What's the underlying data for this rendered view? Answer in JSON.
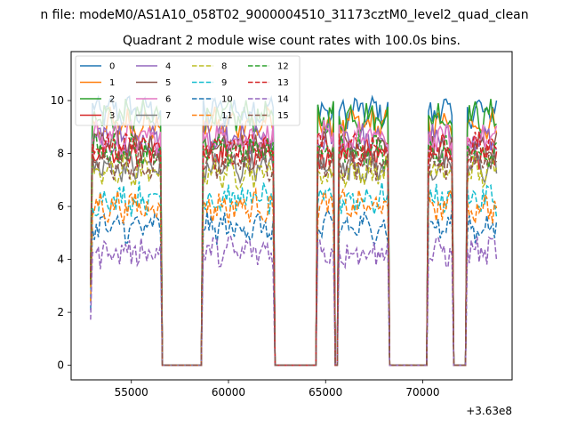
{
  "figure": {
    "suptitle": "n file: modeM0/AS1A10_058T02_9000004510_31173cztM0_level2_quad_clean",
    "title": "Quadrant 2 module wise count rates with 100.0s bins.",
    "x_offset_label": "+3.63e8"
  },
  "chart_data": {
    "type": "line",
    "title": "Quadrant 2 module wise count rates with 100.0s bins.",
    "xlabel": "",
    "ylabel": "",
    "x_offset": 363000000,
    "xlim": [
      51900,
      74600
    ],
    "ylim": [
      -0.55,
      11.85
    ],
    "x_ticks": [
      55000,
      60000,
      65000,
      70000
    ],
    "x_tick_labels": [
      "55000",
      "60000",
      "65000",
      "70000"
    ],
    "y_ticks": [
      0,
      2,
      4,
      6,
      8,
      10
    ],
    "y_tick_labels": [
      "0",
      "2",
      "4",
      "6",
      "8",
      "10"
    ],
    "grid": false,
    "legend": {
      "placement": "top-left",
      "columns": 4
    },
    "x_start": 52900,
    "x_end": 73800,
    "x_step": 100,
    "active_intervals": [
      [
        53000,
        56500
      ],
      [
        58700,
        59400
      ],
      [
        59500,
        62300
      ],
      [
        64600,
        65400
      ],
      [
        65700,
        68200
      ],
      [
        70300,
        71500
      ],
      [
        72300,
        73800
      ]
    ],
    "series": [
      {
        "name": "0",
        "level": 9.6,
        "color": "#1f77b4",
        "dash": "solid"
      },
      {
        "name": "1",
        "level": 9.1,
        "color": "#ff7f0e",
        "dash": "solid"
      },
      {
        "name": "2",
        "level": 9.4,
        "color": "#2ca02c",
        "dash": "solid"
      },
      {
        "name": "3",
        "level": 8.0,
        "color": "#d62728",
        "dash": "solid"
      },
      {
        "name": "4",
        "level": 8.5,
        "color": "#9467bd",
        "dash": "solid"
      },
      {
        "name": "5",
        "level": 8.3,
        "color": "#8c564b",
        "dash": "solid"
      },
      {
        "name": "6",
        "level": 8.6,
        "color": "#e377c2",
        "dash": "solid"
      },
      {
        "name": "7",
        "level": 7.5,
        "color": "#7f7f7f",
        "dash": "solid"
      },
      {
        "name": "8",
        "level": 7.3,
        "color": "#bcbd22",
        "dash": "dashed"
      },
      {
        "name": "9",
        "level": 6.3,
        "color": "#17becf",
        "dash": "dashed"
      },
      {
        "name": "10",
        "level": 5.2,
        "color": "#1f77b4",
        "dash": "dashed"
      },
      {
        "name": "11",
        "level": 6.0,
        "color": "#ff7f0e",
        "dash": "dashed"
      },
      {
        "name": "12",
        "level": 8.1,
        "color": "#2ca02c",
        "dash": "dashed"
      },
      {
        "name": "13",
        "level": 8.2,
        "color": "#d62728",
        "dash": "dashed"
      },
      {
        "name": "14",
        "level": 4.3,
        "color": "#9467bd",
        "dash": "dashed"
      },
      {
        "name": "15",
        "level": 7.6,
        "color": "#8c564b",
        "dash": "dashed"
      }
    ]
  }
}
